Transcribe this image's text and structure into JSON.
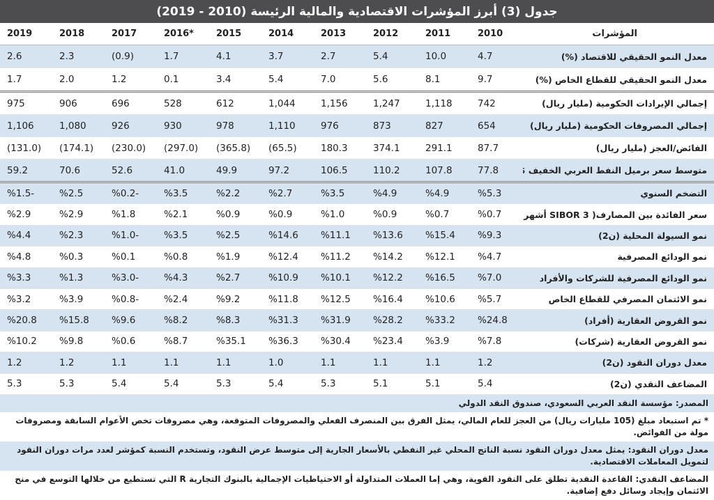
{
  "title": "جدول (3) أبرز المؤشرات الاقتصادية والمالية الرئيسة (2010 - 2019)",
  "header": [
    "المؤشرات",
    "2010",
    "2011",
    "2012",
    "2013",
    "2014",
    "2015",
    "2016*",
    "2017",
    "2018",
    "2019"
  ],
  "groups": [
    [
      {
        "label": "معدل النمو الحقيقي للاقتصاد (%)",
        "values": [
          "4.7",
          "10.0",
          "5.4",
          "2.7",
          "3.7",
          "4.1",
          "1.7",
          "(0.9)",
          "2.3",
          "2.6"
        ]
      },
      {
        "label": "معدل النمو الحقيقي للقطاع الخاص (%)",
        "values": [
          "9.7",
          "8.1",
          "5.6",
          "7.0",
          "5.4",
          "3.4",
          "0.1",
          "1.2",
          "2.0",
          "1.7"
        ]
      }
    ],
    [
      {
        "label": "إجمالي الإيرادات الحكومية (مليار ريال)",
        "values": [
          "742",
          "1,118",
          "1,247",
          "1,156",
          "1,044",
          "612",
          "528",
          "696",
          "906",
          "975"
        ]
      },
      {
        "label": "إجمالي المصروفات الحكومية (مليار ريال)",
        "values": [
          "654",
          "827",
          "873",
          "976",
          "1,110",
          "978",
          "930",
          "926",
          "1,080",
          "1,106"
        ]
      },
      {
        "label": "الفائض/العجز (مليار ريال)",
        "values": [
          "87.7",
          "291.1",
          "374.1",
          "180.3",
          "(65.5)",
          "(365.8)",
          "(297.0)",
          "(230.0)",
          "(174.1)",
          "(131.0)"
        ]
      },
      {
        "label": "متوسط سعر برميل النفط العربي الخفيف $",
        "values": [
          "77.8",
          "107.8",
          "110.2",
          "106.5",
          "97.2",
          "49.9",
          "41.0",
          "52.6",
          "70.6",
          "59.2"
        ]
      }
    ],
    [
      {
        "label": "التضخم السنوي",
        "values": [
          "%5.3",
          "%4.9",
          "%4.9",
          "%3.5",
          "%2.7",
          "%2.2",
          "%3.5",
          "%0.2-",
          "%2.5",
          "%1.5-"
        ]
      },
      {
        "label": "سعر الفائدة بين المصارف( SIBOR 3 أشهر)",
        "values": [
          "%0.7",
          "%0.7",
          "%0.9",
          "%1.0",
          "%0.9",
          "%0.9",
          "%2.1",
          "%1.8",
          "%2.9",
          "%2.9"
        ]
      },
      {
        "label": "نمو السيولة المحلية (ن2)",
        "values": [
          "%9.3",
          "%15.4",
          "%13.6",
          "%11.1",
          "%14.6",
          "%2.5",
          "%3.5",
          "%1.0-",
          "%2.3",
          "%4.4"
        ]
      },
      {
        "label": "نمو الودائع المصرفية",
        "values": [
          "%4.7",
          "%12.1",
          "%14.2",
          "%11.2",
          "%12.4",
          "%1.9",
          "%0.8",
          "%0.1",
          "%0.3",
          "%4.8"
        ]
      },
      {
        "label": "نمو الودائع المصرفية للشركات والأفراد",
        "values": [
          "%7.0",
          "%16.5",
          "%12.2",
          "%10.1",
          "%10.9",
          "%2.7",
          "%4.3",
          "%3.0-",
          "%1.3",
          "%3.3"
        ]
      },
      {
        "label": "نمو الائتمان المصرفي للقطاع الخاص",
        "values": [
          "%5.7",
          "%10.6",
          "%16.4",
          "%12.5",
          "%11.8",
          "%9.2",
          "%2.4",
          "%0.8-",
          "%3.9",
          "%3.2"
        ]
      },
      {
        "label": "نمو القروض العقارية (أفراد)",
        "values": [
          "%24.8",
          "%33.2",
          "%28.2",
          "%31.9",
          "%31.3",
          "%8.3",
          "%8.2",
          "%9.6",
          "%15.8",
          "%20.8"
        ]
      },
      {
        "label": "نمو القروض العقارية (شركات)",
        "values": [
          "%7.8",
          "%3.9",
          "%23.4",
          "%30.4",
          "%36.3",
          "%35.1",
          "%8.7",
          "%0.6",
          "%9.8",
          "%10.2"
        ]
      },
      {
        "label": "معدل دوران النقود (ن2)",
        "values": [
          "1.2",
          "1.1",
          "1.1",
          "1.1",
          "1.0",
          "1.1",
          "1.1",
          "1.1",
          "1.2",
          "1.2"
        ]
      },
      {
        "label": "المضاعف النقدي (ن2)",
        "values": [
          "5.4",
          "5.1",
          "5.1",
          "5.3",
          "5.4",
          "5.3",
          "5.4",
          "5.4",
          "5.3",
          "5.3"
        ]
      }
    ]
  ],
  "notes": [
    "المصدر: مؤسسة النقد العربي السعودي، صندوق النقد الدولي",
    "* تم استبعاد مبلغ (105 مليارات ريال) من العجز للعام المالي، يمثل الفرق بين المنصرف الفعلي والمصروفات المتوقعة، وهي مصروفات تخص الأعوام السابقة ومصروفات مولة من الفوائض.",
    "معدل دوران النقود: يمثل معدل دوران النقود نسبة الناتج المحلي غير النفطي بالأسعار الجارية إلى متوسط عرض النقود، وتستخدم النسبة كمؤشر لعدد مرات دوران النقود لتمويل المعاملات الاقتصادية.",
    "المضاعف النقدي: القاعدة النقدية تطلق على النقود القوية، وهي إما العملات المتداولة أو الاحتياطيات الإجمالية بالبنوك التجارية R التي تستطيع من خلالها التوسع في منح الائتمان وإيجاد وسائل دفع إضافية."
  ]
}
